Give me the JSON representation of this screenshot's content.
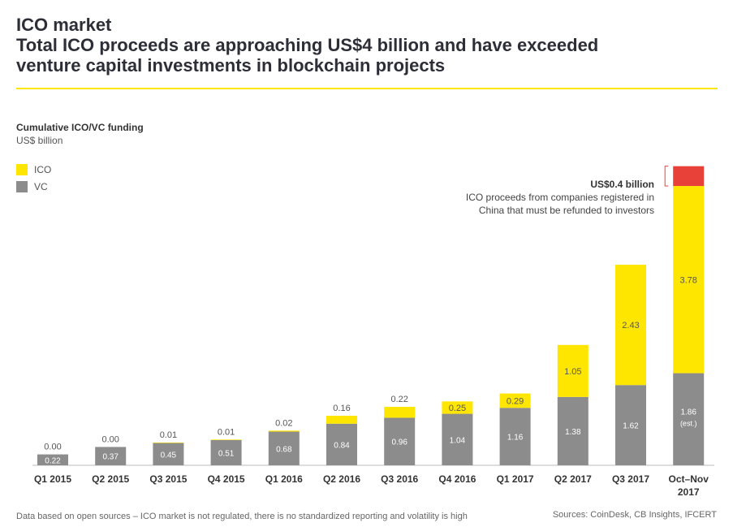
{
  "header": {
    "title_line1": "ICO market",
    "title_line2": "Total ICO proceeds are approaching US$4 billion and have exceeded",
    "title_line3": "venture capital investments in blockchain projects"
  },
  "footer": {
    "note": "Data based on open sources – ICO market is not regulated, there is no standardized reporting and volatility is high",
    "source": "Sources: CoinDesk, CB Insights, IFCERT"
  },
  "annotation": {
    "title": "US$0.4 billion",
    "line1": "ICO proceeds from companies registered in",
    "line2": "China that must be refunded to investors"
  },
  "colors": {
    "ico": "#ffe600",
    "vc": "#8c8c8c",
    "refund": "#e8413a",
    "rule": "#ffe600"
  },
  "chart_data": {
    "type": "bar",
    "stacked": true,
    "title": "Cumulative ICO/VC funding",
    "ylabel": "US$ billion",
    "categories": [
      "Q1 2015",
      "Q2 2015",
      "Q3 2015",
      "Q4 2015",
      "Q1 2016",
      "Q2 2016",
      "Q3 2016",
      "Q4 2016",
      "Q1 2017",
      "Q2 2017",
      "Q3 2017",
      "Oct–Nov 2017"
    ],
    "series": [
      {
        "name": "VC",
        "values": [
          0.22,
          0.37,
          0.45,
          0.51,
          0.68,
          0.84,
          0.96,
          1.04,
          1.16,
          1.38,
          1.62,
          1.86
        ],
        "labels": [
          "0.22",
          "0.37",
          "0.45",
          "0.51",
          "0.68",
          "0.84",
          "0.96",
          "1.04",
          "1.16",
          "1.38",
          "1.62",
          "1.86"
        ]
      },
      {
        "name": "ICO",
        "values": [
          0.0,
          0.0,
          0.01,
          0.01,
          0.02,
          0.16,
          0.22,
          0.25,
          0.29,
          1.05,
          2.43,
          3.78
        ],
        "labels": [
          "0.00",
          "0.00",
          "0.01",
          "0.01",
          "0.02",
          "0.16",
          "0.22",
          "0.25",
          "0.29",
          "1.05",
          "2.43",
          "3.78"
        ]
      },
      {
        "name": "ICO refund (China)",
        "values": [
          0,
          0,
          0,
          0,
          0,
          0,
          0,
          0,
          0,
          0,
          0,
          0.4
        ]
      }
    ],
    "est_label": "(est.)",
    "legend": [
      "ICO",
      "VC"
    ],
    "legend_position": "top-left",
    "ylim": [
      0,
      6.1
    ],
    "grid": false
  }
}
